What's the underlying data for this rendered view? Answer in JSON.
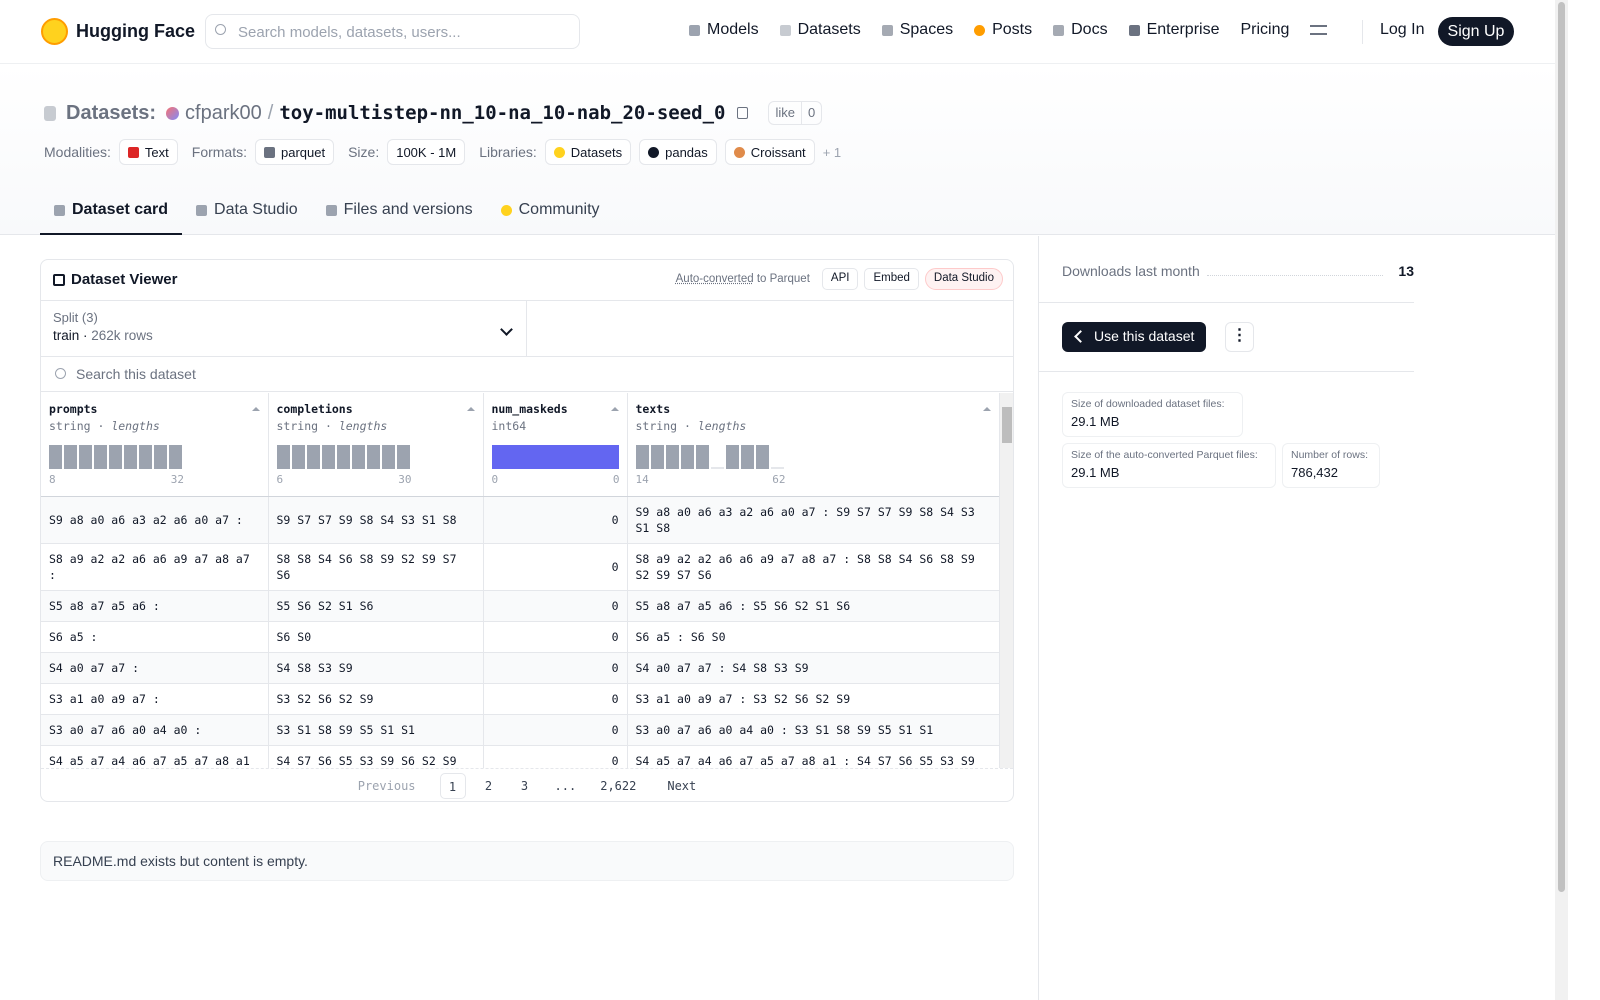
{
  "nav": {
    "brand": "Hugging Face",
    "search_placeholder": "Search models, datasets, users...",
    "links": [
      "Models",
      "Datasets",
      "Spaces",
      "Posts",
      "Docs",
      "Enterprise",
      "Pricing"
    ],
    "login": "Log In",
    "signup": "Sign Up"
  },
  "header": {
    "prefix": "Datasets:",
    "owner": "cfpark00",
    "separator": "/",
    "name": "toy-multistep-nn_10-na_10-nab_20-seed_0",
    "like": "like",
    "likes": 0,
    "tag_groups": [
      {
        "label": "Modalities:",
        "items": [
          "Text"
        ]
      },
      {
        "label": "Formats:",
        "items": [
          "parquet"
        ]
      },
      {
        "label": "Size:",
        "items": [
          "100K - 1M"
        ]
      },
      {
        "label": "Libraries:",
        "items": [
          "Datasets",
          "pandas",
          "Croissant"
        ]
      }
    ],
    "more": "+ 1"
  },
  "tabs": [
    "Dataset card",
    "Data Studio",
    "Files and versions",
    "Community"
  ],
  "viewer": {
    "title": "Dataset Viewer",
    "auto_converted": "Auto-converted",
    "to_parquet": "to Parquet",
    "buttons": [
      "API",
      "Embed",
      "Data Studio"
    ],
    "split_label": "Split (3)",
    "split": "train",
    "split_rows": "262k rows",
    "search_placeholder": "Search this dataset",
    "columns": [
      {
        "name": "prompts",
        "dtype": "string",
        "stat": "lengths",
        "min": 8,
        "max": 32
      },
      {
        "name": "completions",
        "dtype": "string",
        "stat": "lengths",
        "min": 6,
        "max": 30
      },
      {
        "name": "num_maskeds",
        "dtype": "int64",
        "min": 0,
        "max": 0
      },
      {
        "name": "texts",
        "dtype": "string",
        "stat": "lengths",
        "min": 14,
        "max": 62
      }
    ],
    "rows": [
      [
        "S9 a8 a0 a6 a3 a2 a6 a0 a7 :",
        "S9 S7 S7 S9 S8 S4 S3 S1 S8",
        0,
        "S9 a8 a0 a6 a3 a2 a6 a0 a7 : S9 S7 S7 S9 S8 S4 S3 S1 S8"
      ],
      [
        "S8 a9 a2 a2 a6 a6 a9 a7 a8 a7 :",
        "S8 S8 S4 S6 S8 S9 S2 S9 S7 S6",
        0,
        "S8 a9 a2 a2 a6 a6 a9 a7 a8 a7 : S8 S8 S4 S6 S8 S9 S2 S9 S7 S6"
      ],
      [
        "S5 a8 a7 a5 a6 :",
        "S5 S6 S2 S1 S6",
        0,
        "S5 a8 a7 a5 a6 : S5 S6 S2 S1 S6"
      ],
      [
        "S6 a5 :",
        "S6 S0",
        0,
        "S6 a5 : S6 S0"
      ],
      [
        "S4 a0 a7 a7 :",
        "S4 S8 S3 S9",
        0,
        "S4 a0 a7 a7 : S4 S8 S3 S9"
      ],
      [
        "S3 a1 a0 a9 a7 :",
        "S3 S2 S6 S2 S9",
        0,
        "S3 a1 a0 a9 a7 : S3 S2 S6 S2 S9"
      ],
      [
        "S3 a0 a7 a6 a0 a4 a0 :",
        "S3 S1 S8 S9 S5 S1 S1",
        0,
        "S3 a0 a7 a6 a0 a4 a0 : S3 S1 S8 S9 S5 S1 S1"
      ],
      [
        "S4 a5 a7 a4 a6 a7 a5 a7 a8 a1",
        "S4 S7 S6 S5 S3 S9 S6 S2 S9",
        0,
        "S4 a5 a7 a4 a6 a7 a5 a7 a8 a1 : S4 S7 S6 S5 S3 S9"
      ]
    ],
    "pagination": {
      "previous": "Previous",
      "pages": [
        1,
        2,
        3,
        "...",
        {
          "value": 2622,
          "label": "2,622"
        }
      ],
      "next": "Next"
    }
  },
  "readme": "README.md exists but content is empty.",
  "sidebar": {
    "downloads_label": "Downloads last month",
    "downloads": 13,
    "use_button": "Use this dataset",
    "stats": [
      {
        "label": "Size of downloaded dataset files:",
        "value": "29.1 MB"
      },
      {
        "label": "Size of the auto-converted Parquet files:",
        "value": "29.1 MB"
      },
      {
        "label": "Number of rows:",
        "value": {
          "value": 786432,
          "label": "786,432"
        }
      }
    ]
  }
}
